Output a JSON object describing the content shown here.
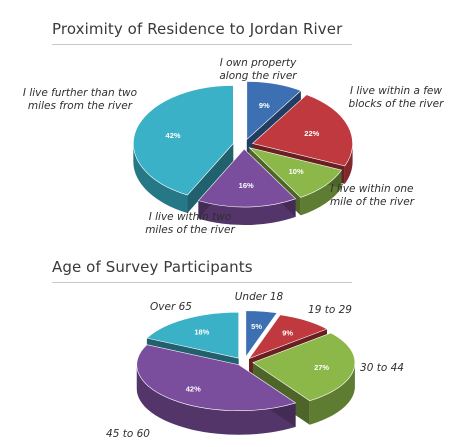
{
  "chart_data": [
    {
      "type": "pie",
      "title": "Proximity of Residence to Jordan River",
      "unit": "%",
      "slices": [
        {
          "label": "I own property\nalong the river",
          "value": 9,
          "value_label": "9%",
          "color": "#3d6fb3"
        },
        {
          "label": "I live within a few\nblocks of the river",
          "value": 22,
          "value_label": "22%",
          "color": "#c0393e"
        },
        {
          "label": "I live within one\nmile of the river",
          "value": 10,
          "value_label": "10%",
          "color": "#8cb84a"
        },
        {
          "label": "I live within two\nmiles of the river",
          "value": 16,
          "value_label": "16%",
          "color": "#7a4e9c"
        },
        {
          "label": "I live further than two\nmiles from the river",
          "value": 42,
          "value_label": "42%",
          "color": "#3ab1c6"
        }
      ]
    },
    {
      "type": "pie",
      "title": "Age of Survey Participants",
      "unit": "%",
      "slices": [
        {
          "label": "Under 18",
          "value": 5,
          "value_label": "5%",
          "color": "#3d6fb3"
        },
        {
          "label": "19 to 29",
          "value": 9,
          "value_label": "9%",
          "color": "#c0393e"
        },
        {
          "label": "30 to 44",
          "value": 27,
          "value_label": "27%",
          "color": "#8cb84a"
        },
        {
          "label": "45 to 60",
          "value": 42,
          "value_label": "42%",
          "color": "#7a4e9c"
        },
        {
          "label": "Over 65",
          "value": 18,
          "value_label": "18%",
          "color": "#3ab1c6"
        }
      ]
    }
  ]
}
